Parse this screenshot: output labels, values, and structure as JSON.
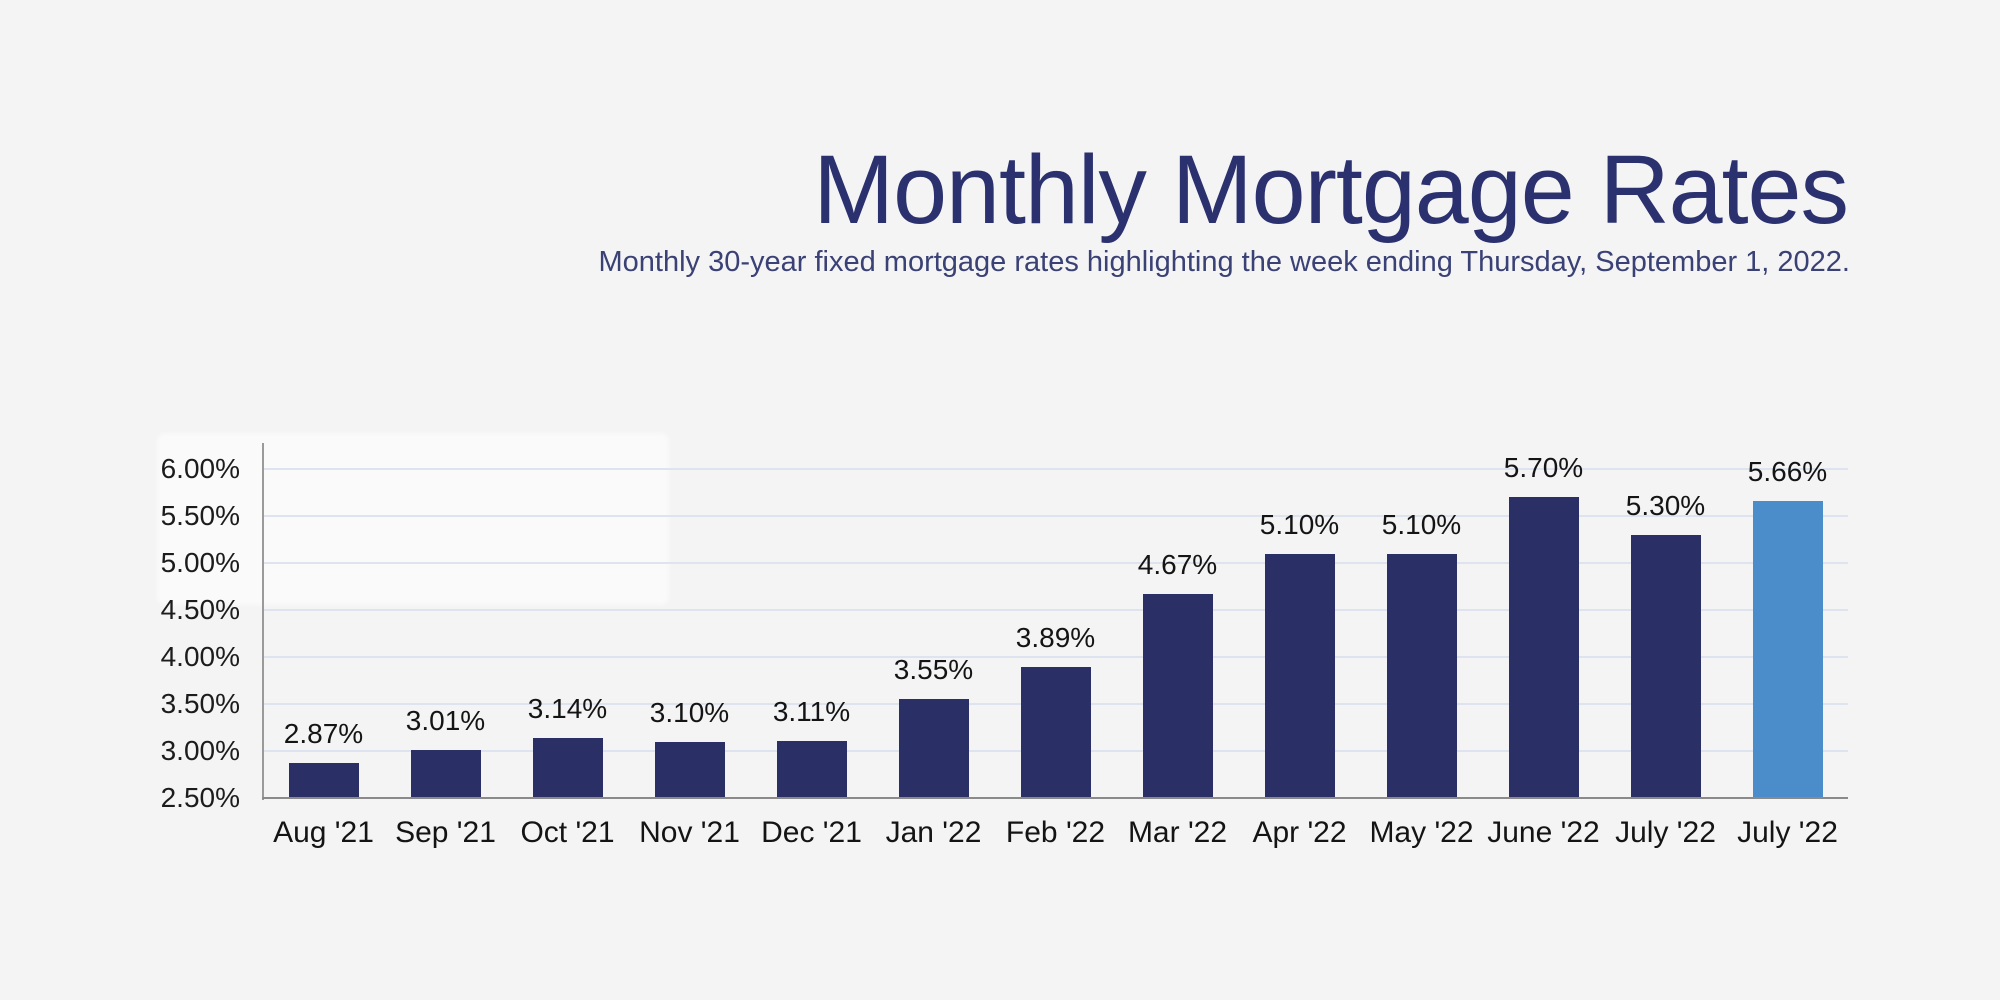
{
  "page": {
    "background_color": "#f4f4f5"
  },
  "header": {
    "title": "Monthly Mortgage Rates",
    "subtitle": "Monthly 30-year fixed mortgage rates highlighting the week ending Thursday, September 1, 2022."
  },
  "chart_data": {
    "type": "bar",
    "title": "Monthly Mortgage Rates",
    "subtitle": "Monthly 30-year fixed mortgage rates highlighting the week ending Thursday, September 1, 2022.",
    "categories": [
      "Aug '21",
      "Sep '21",
      "Oct '21",
      "Nov '21",
      "Dec '21",
      "Jan '22",
      "Feb '22",
      "Mar '22",
      "Apr '22",
      "May '22",
      "June '22",
      "July '22",
      "July '22"
    ],
    "values": [
      2.87,
      3.01,
      3.14,
      3.1,
      3.11,
      3.55,
      3.89,
      4.67,
      5.1,
      5.1,
      5.7,
      5.3,
      5.66
    ],
    "value_labels": [
      "2.87%",
      "3.01%",
      "3.14%",
      "3.10%",
      "3.11%",
      "3.55%",
      "3.89%",
      "4.67%",
      "5.10%",
      "5.10%",
      "5.70%",
      "5.30%",
      "5.66%"
    ],
    "yticks": [
      {
        "label": "2.50%",
        "value": 2.5
      },
      {
        "label": "3.00%",
        "value": 3.0
      },
      {
        "label": "3.50%",
        "value": 3.5
      },
      {
        "label": "4.00%",
        "value": 4.0
      },
      {
        "label": "4.50%",
        "value": 4.5
      },
      {
        "label": "5.00%",
        "value": 5.0
      },
      {
        "label": "5.50%",
        "value": 5.5
      },
      {
        "label": "6.00%",
        "value": 6.0
      }
    ],
    "ylim": [
      2.5,
      6.25
    ],
    "grid": "horizontal",
    "legend": "none",
    "xlabel": "",
    "ylabel": "",
    "bar_color": "#2a2f66",
    "highlight_color": "#4b8ccb",
    "highlight_index": 12,
    "gridline_color": "#dde3ef",
    "axis_color": "#8a8a8a",
    "tick_text_color": "#1c1c1c",
    "title_color": "#2b316e",
    "subtitle_color": "#3a4175"
  }
}
